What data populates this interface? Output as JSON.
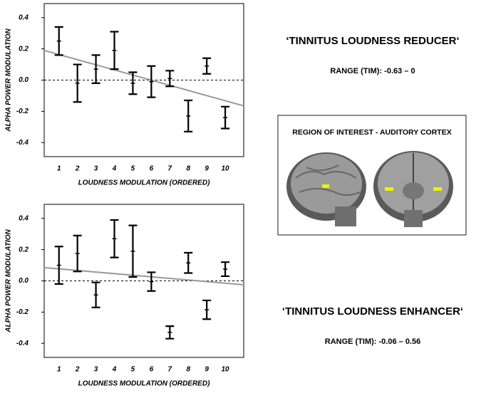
{
  "chart_data": [
    {
      "type": "errorbar",
      "xlabel": "LOUDNESS MODULATION (ORDERED)",
      "ylabel": "ALPHA POWER MODULATION",
      "x": [
        1,
        2,
        3,
        4,
        5,
        6,
        7,
        8,
        9,
        10
      ],
      "values": [
        0.25,
        -0.02,
        0.07,
        0.19,
        -0.02,
        -0.01,
        0.01,
        -0.23,
        0.09,
        -0.24
      ],
      "errors": [
        0.09,
        0.12,
        0.09,
        0.12,
        0.07,
        0.1,
        0.05,
        0.1,
        0.05,
        0.07
      ],
      "trend": {
        "x": [
          0.2,
          11
        ],
        "values": [
          0.19,
          -0.165
        ]
      },
      "hline": 0,
      "xlim": [
        0.2,
        11
      ],
      "xticks": [
        1,
        2,
        3,
        4,
        5,
        6,
        7,
        8,
        9,
        10
      ],
      "ylim": [
        -0.49,
        0.49
      ],
      "yticks": [
        0.4,
        0.2,
        {
          "value": 0,
          "label": "0.0"
        },
        -0.2,
        -0.4
      ],
      "label": "‘TINNITUS LOUDNESS REDUCER‘",
      "range_text": "RANGE (TIM): -0.63 – 0"
    },
    {
      "type": "errorbar",
      "xlabel": "LOUDNESS MODULATION (ORDERED)",
      "ylabel": "ALPHA POWER MODULATION",
      "x": [
        1,
        2,
        3,
        4,
        5,
        6,
        7,
        8,
        9,
        10
      ],
      "values": [
        0.1,
        0.175,
        -0.09,
        0.27,
        0.19,
        -0.005,
        -0.33,
        0.115,
        -0.185,
        0.075
      ],
      "errors": [
        0.12,
        0.115,
        0.08,
        0.12,
        0.165,
        0.06,
        0.04,
        0.065,
        0.06,
        0.045
      ],
      "trend": {
        "x": [
          0.2,
          11
        ],
        "values": [
          0.085,
          -0.025
        ]
      },
      "hline": 0,
      "xlim": [
        0.2,
        11
      ],
      "xticks": [
        1,
        2,
        3,
        4,
        5,
        6,
        7,
        8,
        9,
        10
      ],
      "ylim": [
        -0.49,
        0.49
      ],
      "yticks": [
        0.4,
        0.2,
        {
          "value": 0,
          "label": "0.0"
        },
        -0.2,
        -0.4
      ],
      "label": "‘TINNITUS LOUDNESS ENHANCER‘",
      "range_text": "RANGE (TIM): -0.06 – 0.56"
    }
  ],
  "roi_box": {
    "label": "REGION OF INTEREST - AUDITORY CORTEX"
  }
}
